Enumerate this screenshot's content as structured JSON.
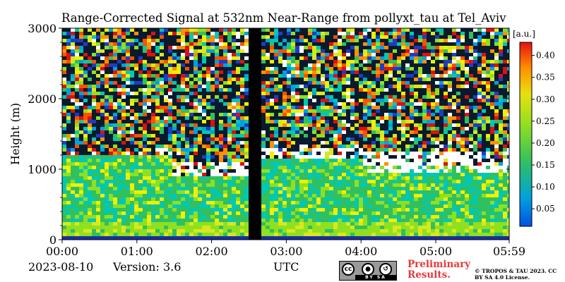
{
  "figure": {
    "title": "Range-Corrected Signal at 532nm Near-Range from pollyxt_tau at Tel_Aviv",
    "date": "2023-08-10",
    "version": "Version: 3.6",
    "xunit": "UTC",
    "preliminary": "Preliminary Results.",
    "copyright": "© TROPOS & TAU 2023. CC BY SA 4.0 License.",
    "license_badge": {
      "cc": "cc",
      "by": "BY",
      "sa": "SA"
    },
    "colorbar_unit": "[a.u.]"
  },
  "chart_data": {
    "type": "heatmap",
    "title": "Range-Corrected Signal at 532nm Near-Range from pollyxt_tau at Tel_Aviv",
    "xlabel": "UTC",
    "ylabel": "Height (m)",
    "x_ticks": [
      "00:00",
      "01:00",
      "02:00",
      "03:00",
      "04:00",
      "05:00",
      "05:59"
    ],
    "y_ticks": [
      0,
      1000,
      2000,
      3000
    ],
    "xlim_hours": [
      0,
      5.983
    ],
    "ylim": [
      0,
      3000
    ],
    "colorbar": {
      "label": "[a.u.]",
      "ticks": [
        0.05,
        0.1,
        0.15,
        0.2,
        0.25,
        0.3,
        0.35,
        0.4
      ],
      "range": [
        0.01,
        0.43
      ],
      "colormap": "jet-like"
    },
    "missing_data_hours": [
      2.5,
      2.67
    ],
    "profile_features": [
      {
        "hour_start": 0.0,
        "hour_end": 1.5,
        "layer_top_m": 1200
      },
      {
        "hour_start": 1.5,
        "hour_end": 2.5,
        "layer_top_m": 900,
        "cloud_base_m": 900,
        "cloud_top_m": 1100
      },
      {
        "hour_start": 2.67,
        "hour_end": 4.0,
        "layer_top_m": 1150,
        "cloud_base_m": 1150,
        "cloud_top_m": 1300
      },
      {
        "hour_start": 4.0,
        "hour_end": 5.983,
        "layer_top_m": 1050,
        "cloud_base_m": 950,
        "cloud_top_m": 1250
      }
    ]
  }
}
